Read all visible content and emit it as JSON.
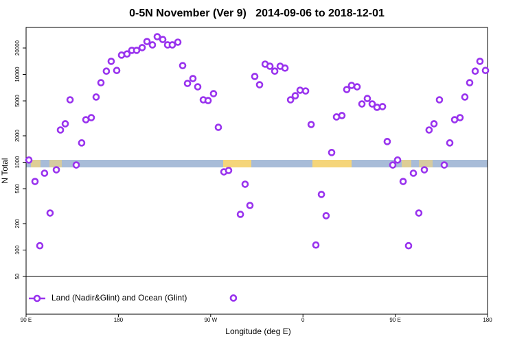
{
  "chart_data": {
    "type": "scatter",
    "title": "0-5N November (Ver 9)   2014-09-06 to 2018-12-01",
    "xlabel": "Longitude (deg E)",
    "ylabel": "N Total",
    "xlim": [
      90,
      540
    ],
    "xticks": [
      {
        "value": 90,
        "label": "90 E"
      },
      180,
      {
        "value": 270,
        "label": "90 W"
      },
      {
        "value": 360,
        "label": "0"
      },
      {
        "value": 450,
        "label": "90 E"
      },
      {
        "value": 540,
        "label": "180"
      }
    ],
    "ylim": [
      18.6,
      34300
    ],
    "log_y": true,
    "yticks": [
      50,
      100,
      200,
      500,
      1000,
      2000,
      5000,
      10000,
      20000
    ],
    "legend": "lower left",
    "series": [
      {
        "name": "Land (Nadir&Glint) and Ocean (Glint)",
        "color": "#9933ee",
        "x": [
          92.7,
          98.7,
          103.4,
          108,
          113.4,
          119.5,
          123.5,
          128.2,
          132.9,
          138.9,
          144.2,
          148.3,
          153.6,
          158.3,
          163,
          168.3,
          173,
          178.4,
          183.1,
          188.4,
          193.1,
          197.8,
          203.2,
          207.9,
          213.2,
          217.9,
          223.3,
          228,
          232.6,
          238,
          242.7,
          247.4,
          252.7,
          257.4,
          262.8,
          267.5,
          272.8,
          277.5,
          282.9,
          287.5,
          292.2,
          299,
          303.6,
          308.3,
          313,
          317.7,
          323.1,
          327.8,
          332.5,
          337.8,
          342.5,
          347.9,
          352.5,
          357.2,
          362.6,
          368,
          372.6,
          378,
          382.6,
          388,
          392.7,
          398,
          402.7,
          407.4,
          412.8,
          417.5,
          422.8,
          427.5,
          432.2,
          437.6,
          442.2,
          447.6,
          452.3,
          457.7,
          463,
          467.7,
          473,
          478.4,
          483,
          487.8,
          493.1,
          497.8,
          503.2,
          507.9,
          513.2,
          517.9,
          522.6,
          528,
          532.6,
          538
        ],
        "values": [
          1060,
          604,
          112,
          750,
          264,
          820,
          2330,
          2740,
          5140,
          930,
          1660,
          3050,
          3220,
          5530,
          8050,
          10900,
          14100,
          11100,
          16600,
          17100,
          18800,
          18800,
          20200,
          23700,
          21700,
          26900,
          25000,
          21700,
          21700,
          23300,
          12600,
          7900,
          8970,
          7230,
          5140,
          5040,
          6040,
          2500,
          777,
          806,
          28.4,
          255,
          562,
          322,
          9480,
          7630,
          13100,
          12400,
          10900,
          12400,
          11800,
          5140,
          5720,
          6610,
          6480,
          2690,
          114,
          430,
          246,
          1290,
          3280,
          3400,
          6730,
          7500,
          7230,
          4610,
          5320,
          4610,
          4220,
          4300,
          1720,
          930,
          1060,
          604,
          112,
          750,
          264,
          820,
          2330,
          2740,
          5140,
          930,
          1660,
          3050,
          3220,
          5530,
          8050,
          10900,
          14100,
          11100
        ]
      }
    ]
  }
}
